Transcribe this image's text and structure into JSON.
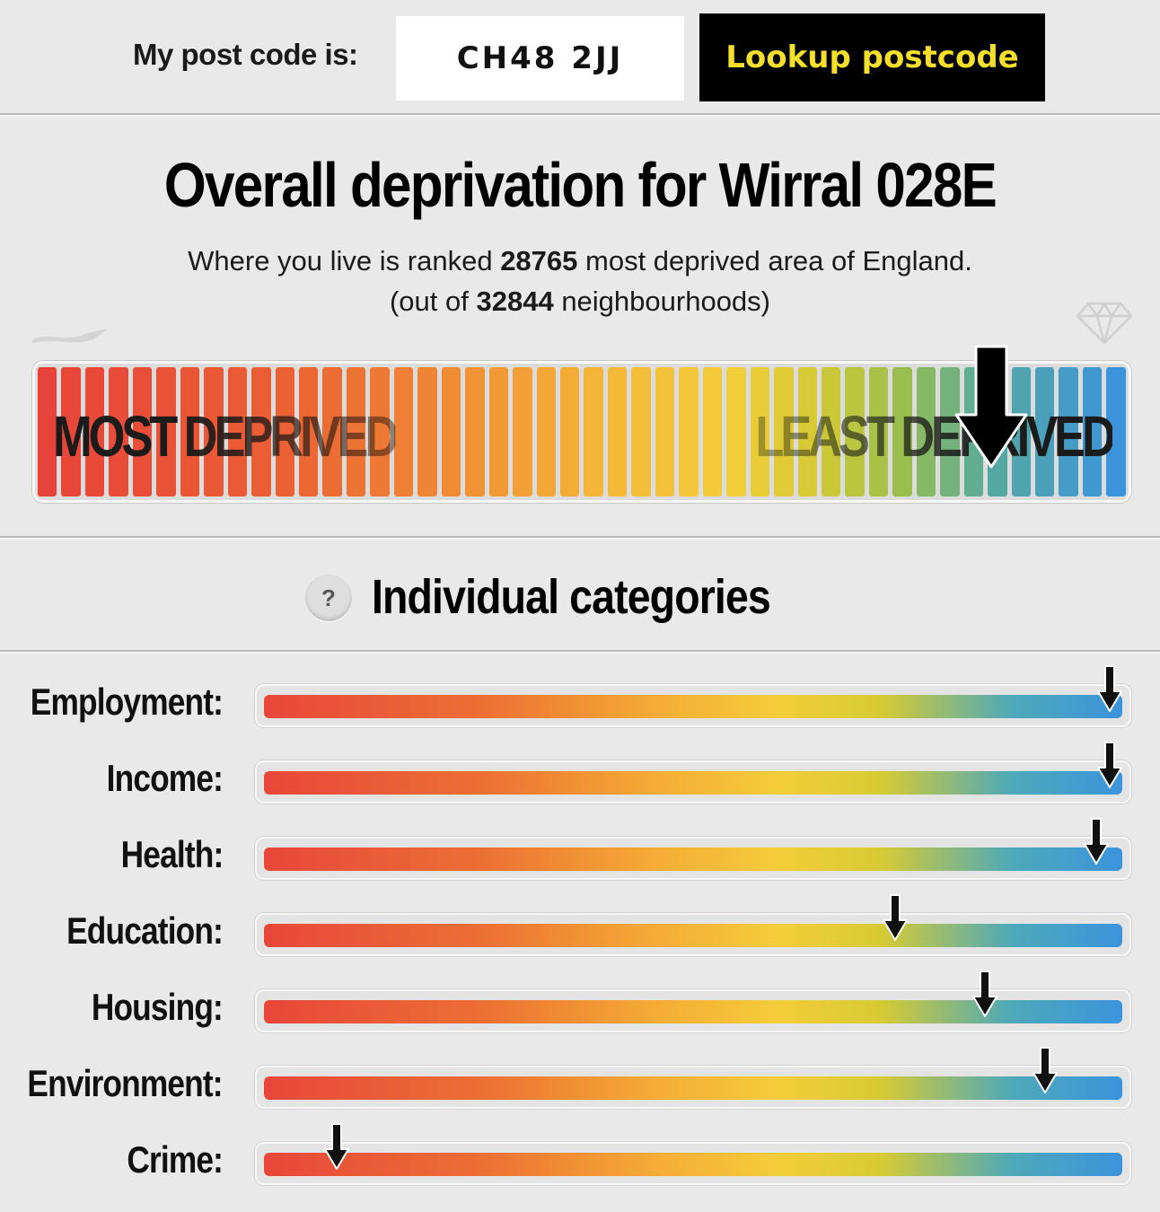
{
  "postcode": {
    "label": "My post code is:",
    "value": "CH48 2JJ",
    "button_label": "Lookup postcode"
  },
  "overall": {
    "title": "Overall deprivation for Wirral 028E",
    "line1_pre": "Where you live is ranked ",
    "rank": "28765",
    "line1_post": " most deprived area of England.",
    "line2_pre": "(out of ",
    "total": "32844",
    "line2_post": " neighbourhoods)",
    "rank_fraction": 0.876,
    "scale_most_label": "MOST DEPRIVED",
    "scale_least_label": "LEAST DEPRIVED"
  },
  "categories_section": {
    "help_icon_label": "?",
    "title": "Individual categories",
    "items": [
      {
        "label": "Employment:",
        "level": 0.985
      },
      {
        "label": "Income:",
        "level": 0.985
      },
      {
        "label": "Health:",
        "level": 0.97
      },
      {
        "label": "Education:",
        "level": 0.735
      },
      {
        "label": "Housing:",
        "level": 0.84
      },
      {
        "label": "Environment:",
        "level": 0.91
      },
      {
        "label": "Crime:",
        "level": 0.085
      }
    ]
  },
  "colors": {
    "most_deprived": "#e8473a",
    "mid": "#f4cd3a",
    "least_deprived": "#3b94dc",
    "button_bg": "#000000",
    "button_text": "#f6df2b"
  },
  "icons": {
    "faint_left": "flag-icon",
    "faint_right": "diamond-icon",
    "marker": "down-arrow-icon"
  }
}
